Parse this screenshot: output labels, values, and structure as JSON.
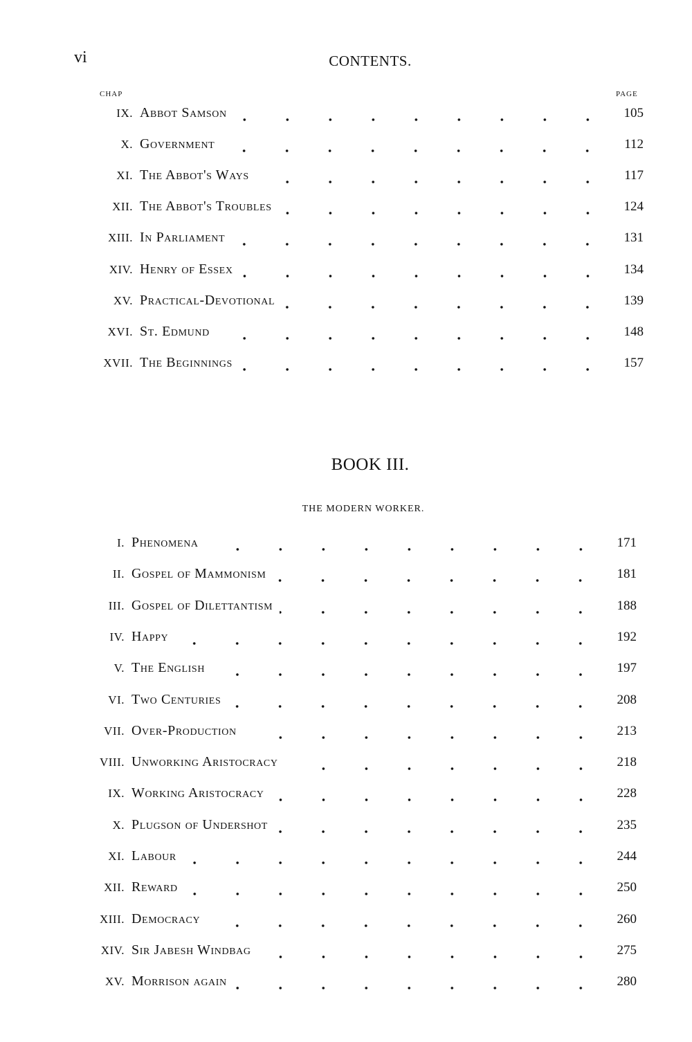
{
  "header": {
    "page_number": "vi",
    "running_title": "CONTENTS."
  },
  "column_headers": {
    "chapter": "CHAP",
    "page": "PAGE"
  },
  "book_ii_entries": [
    {
      "num": "IX.",
      "title": "Abbot Samson",
      "page": "105"
    },
    {
      "num": "X.",
      "title": "Government",
      "page": "112"
    },
    {
      "num": "XI.",
      "title": "The Abbot's Ways",
      "page": "117"
    },
    {
      "num": "XII.",
      "title": "The Abbot's Troubles",
      "page": "124"
    },
    {
      "num": "XIII.",
      "title": "In Parliament",
      "page": "131"
    },
    {
      "num": "XIV.",
      "title": "Henry of Essex",
      "page": "134"
    },
    {
      "num": "XV.",
      "title": "Practical-Devotional",
      "page": "139"
    },
    {
      "num": "XVI.",
      "title": "St. Edmund",
      "page": "148"
    },
    {
      "num": "XVII.",
      "title": "The Beginnings",
      "page": "157"
    }
  ],
  "book_iii": {
    "heading": "BOOK III.",
    "subtitle": "THE MODERN WORKER.",
    "entries": [
      {
        "num": "I.",
        "title": "Phenomena",
        "page": "171"
      },
      {
        "num": "II.",
        "title": "Gospel of Mammonism",
        "page": "181"
      },
      {
        "num": "III.",
        "title": "Gospel of Dilettantism",
        "page": "188"
      },
      {
        "num": "IV.",
        "title": "Happy",
        "page": "192"
      },
      {
        "num": "V.",
        "title": "The English",
        "page": "197"
      },
      {
        "num": "VI.",
        "title": "Two Centuries",
        "page": "208"
      },
      {
        "num": "VII.",
        "title": "Over-Production",
        "page": "213"
      },
      {
        "num": "VIII.",
        "title": "Unworking Aristocracy",
        "page": "218"
      },
      {
        "num": "IX.",
        "title": "Working Aristocracy",
        "page": "228"
      },
      {
        "num": "X.",
        "title": "Plugson of Undershot",
        "page": "235"
      },
      {
        "num": "XI.",
        "title": "Labour",
        "page": "244"
      },
      {
        "num": "XII.",
        "title": "Reward",
        "page": "250"
      },
      {
        "num": "XIII.",
        "title": "Democracy",
        "page": "260"
      },
      {
        "num": "XIV.",
        "title": "Sir Jabesh Windbag",
        "page": "275"
      },
      {
        "num": "XV.",
        "title": "Morrison again",
        "page": "280"
      }
    ]
  }
}
